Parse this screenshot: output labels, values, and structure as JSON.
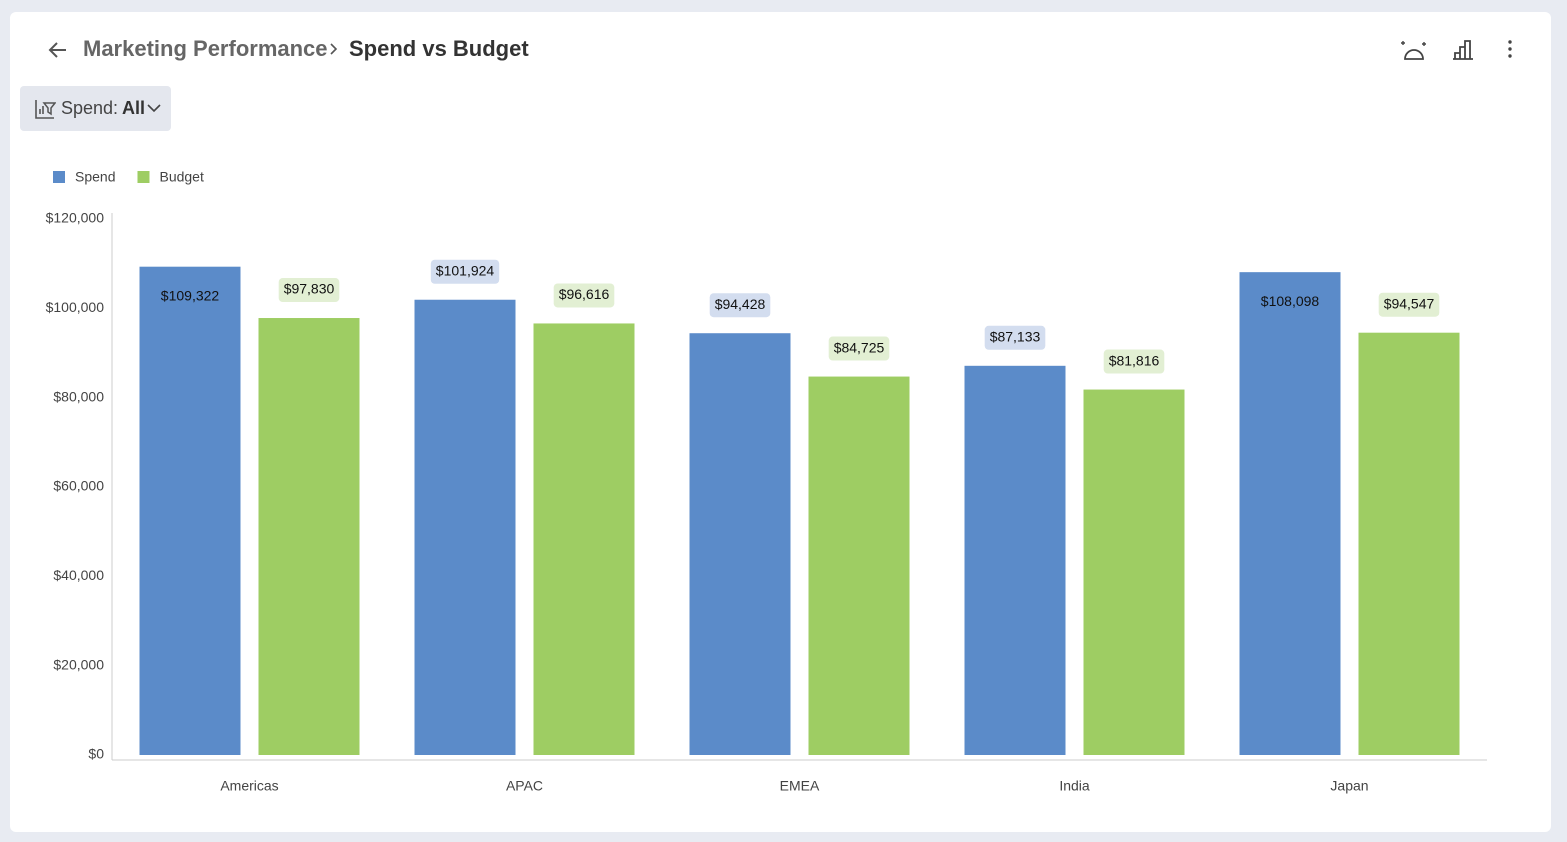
{
  "header": {
    "breadcrumb": "Marketing Performance",
    "title": "Spend vs Budget"
  },
  "filter": {
    "label": "Spend:",
    "value": "All"
  },
  "chart_data": {
    "type": "bar",
    "categories": [
      "Americas",
      "APAC",
      "EMEA",
      "India",
      "Japan"
    ],
    "series": [
      {
        "name": "Spend",
        "color": "#5b8bc9",
        "values": [
          109322,
          101924,
          94428,
          87133,
          108098
        ],
        "value_labels": [
          "$109,322",
          "$101,924",
          "$94,428",
          "$87,133",
          "$108,098"
        ]
      },
      {
        "name": "Budget",
        "color": "#9ecd63",
        "values": [
          97830,
          96616,
          84725,
          81816,
          94547
        ],
        "value_labels": [
          "$97,830",
          "$96,616",
          "$84,725",
          "$81,816",
          "$94,547"
        ]
      }
    ],
    "ylim": [
      0,
      120000
    ],
    "yticks": [
      {
        "value": 0,
        "label": "$0"
      },
      {
        "value": 20000,
        "label": "$20,000"
      },
      {
        "value": 40000,
        "label": "$40,000"
      },
      {
        "value": 60000,
        "label": "$60,000"
      },
      {
        "value": 80000,
        "label": "$80,000"
      },
      {
        "value": 100000,
        "label": "$100,000"
      },
      {
        "value": 120000,
        "label": "$120,000"
      }
    ],
    "legend": "top-left"
  }
}
